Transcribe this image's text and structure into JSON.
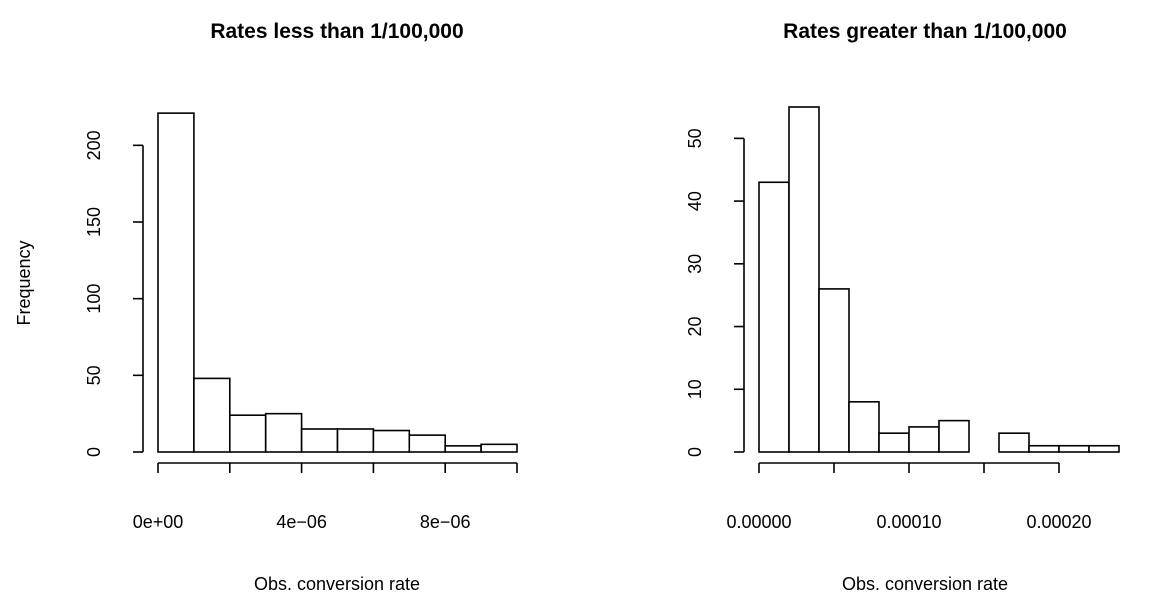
{
  "chart_data": [
    {
      "type": "bar",
      "subtype": "histogram",
      "title": "Rates less than 1/100,000",
      "xlabel": "Obs. conversion rate",
      "ylabel": "Frequency",
      "bin_edges": [
        0,
        1e-06,
        2e-06,
        3e-06,
        4e-06,
        5e-06,
        6e-06,
        7e-06,
        8e-06,
        9e-06,
        1e-05
      ],
      "values": [
        221,
        48,
        24,
        25,
        15,
        15,
        14,
        11,
        4,
        5
      ],
      "xlim": [
        0,
        1e-05
      ],
      "ylim": [
        0,
        225
      ],
      "x_ticks": [
        0,
        2e-06,
        4e-06,
        6e-06,
        8e-06,
        1e-05
      ],
      "x_tick_labels": [
        "0e+00",
        "",
        "4e−06",
        "",
        "8e−06",
        ""
      ],
      "y_ticks": [
        0,
        50,
        100,
        150,
        200
      ],
      "y_tick_labels": [
        "0",
        "50",
        "100",
        "150",
        "200"
      ],
      "grid": false
    },
    {
      "type": "bar",
      "subtype": "histogram",
      "title": "Rates greater than 1/100,000",
      "xlabel": "Obs. conversion rate",
      "ylabel": "",
      "bin_edges": [
        0,
        2e-05,
        4e-05,
        6e-05,
        8e-05,
        0.0001,
        0.00012,
        0.00014,
        0.00016,
        0.00018,
        0.0002,
        0.00022,
        0.00024
      ],
      "values": [
        43,
        55,
        26,
        8,
        3,
        4,
        5,
        0,
        3,
        1,
        1,
        1
      ],
      "xlim": [
        0,
        0.00024
      ],
      "ylim": [
        0,
        55
      ],
      "x_ticks": [
        0,
        5e-05,
        0.0001,
        0.00015,
        0.0002
      ],
      "x_tick_labels": [
        "0.00000",
        "",
        "0.00010",
        "",
        "0.00020"
      ],
      "y_ticks": [
        0,
        10,
        20,
        30,
        40,
        50
      ],
      "y_tick_labels": [
        "0",
        "10",
        "20",
        "30",
        "40",
        "50"
      ],
      "grid": false
    }
  ]
}
